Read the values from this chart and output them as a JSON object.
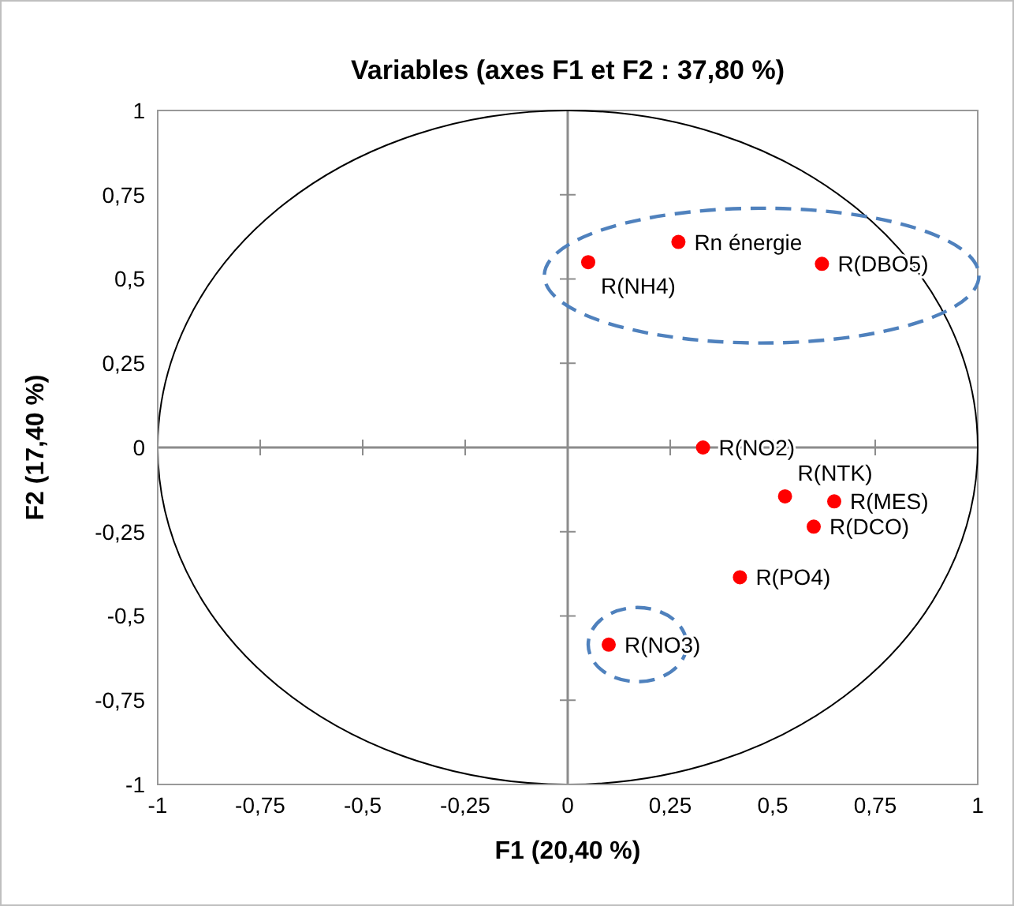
{
  "chart_data": {
    "type": "scatter",
    "title": "Variables (axes F1 et F2 : 37,80 %)",
    "xlabel": "F1 (20,40 %)",
    "ylabel": "F2 (17,40 %)",
    "xlim": [
      -1,
      1
    ],
    "ylim": [
      -1,
      1
    ],
    "xticks": [
      {
        "value": -1,
        "label": "-1"
      },
      {
        "value": -0.75,
        "label": "-0,75"
      },
      {
        "value": -0.5,
        "label": "-0,5"
      },
      {
        "value": -0.25,
        "label": "-0,25"
      },
      {
        "value": 0,
        "label": "0"
      },
      {
        "value": 0.25,
        "label": "0,25"
      },
      {
        "value": 0.5,
        "label": "0,5"
      },
      {
        "value": 0.75,
        "label": "0,75"
      },
      {
        "value": 1,
        "label": "1"
      }
    ],
    "yticks": [
      {
        "value": -1,
        "label": "-1"
      },
      {
        "value": -0.75,
        "label": "-0,75"
      },
      {
        "value": -0.5,
        "label": "-0,5"
      },
      {
        "value": -0.25,
        "label": "-0,25"
      },
      {
        "value": 0,
        "label": "0"
      },
      {
        "value": 0.25,
        "label": "0,25"
      },
      {
        "value": 0.5,
        "label": "0,5"
      },
      {
        "value": 0.75,
        "label": "0,75"
      },
      {
        "value": 1,
        "label": "1"
      }
    ],
    "marker": "circle",
    "series": [
      {
        "color": "#ff0000",
        "x": [
          0.05,
          0.27,
          0.62,
          0.33,
          0.53,
          0.65,
          0.6,
          0.42,
          0.1
        ],
        "values": [
          0.55,
          0.61,
          0.545,
          0,
          -0.145,
          -0.16,
          -0.235,
          -0.385,
          -0.585
        ],
        "value_labels": [
          "R(NH4)",
          "Rn énergie",
          "R(DBO5)",
          "R(NO2)",
          "R(NTK)",
          "R(MES)",
          "R(DCO)",
          "R(PO4)",
          "R(NO3)"
        ]
      }
    ]
  }
}
